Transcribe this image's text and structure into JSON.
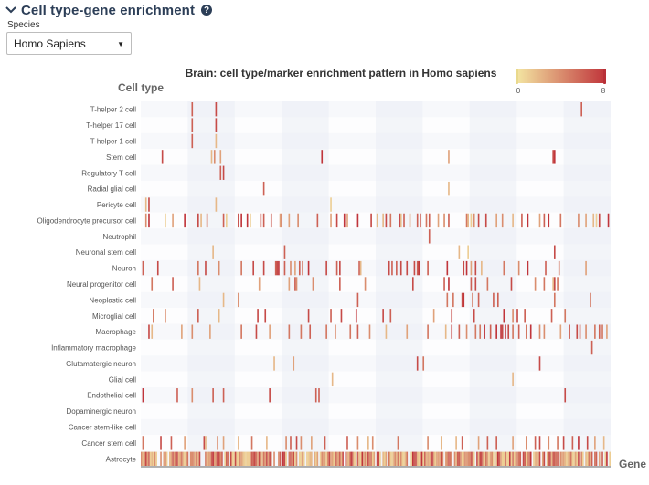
{
  "header": {
    "title": "Cell type-gene enrichment",
    "help_icon": "question-circle-icon",
    "chevron_icon": "chevron-down-icon"
  },
  "species": {
    "label": "Species",
    "selected": "Homo Sapiens"
  },
  "chart_data": {
    "type": "heatmap",
    "title": "Brain: cell type/marker enrichment pattern in Homo sapiens",
    "ylabel": "Cell type",
    "xlabel": "Gene",
    "colorbar": {
      "min": 0,
      "max": 8,
      "min_label": "0",
      "max_label": "8",
      "low_color": "#f3e4a1",
      "high_color": "#c0353b"
    },
    "n_genes": 315,
    "rows": [
      {
        "name": "T-helper 2 cell",
        "cells": [
          [
            34,
            6
          ],
          [
            50,
            7
          ],
          [
            295,
            6
          ]
        ]
      },
      {
        "name": "T-helper 17 cell",
        "cells": [
          [
            34,
            6
          ],
          [
            50,
            7
          ]
        ]
      },
      {
        "name": "T-helper 1 cell",
        "cells": [
          [
            34,
            6
          ],
          [
            50,
            2
          ]
        ]
      },
      {
        "name": "Stem cell",
        "cells": [
          [
            14,
            7
          ],
          [
            47,
            2
          ],
          [
            49,
            4
          ],
          [
            53,
            3
          ],
          [
            121,
            8
          ],
          [
            206,
            3
          ],
          [
            276,
            7
          ],
          [
            277,
            8
          ]
        ]
      },
      {
        "name": "Regulatory T cell",
        "cells": [
          [
            53,
            6
          ],
          [
            55,
            7
          ]
        ]
      },
      {
        "name": "Radial glial cell",
        "cells": [
          [
            82,
            6
          ],
          [
            206,
            2
          ]
        ]
      },
      {
        "name": "Pericyte cell",
        "cells": [
          [
            3,
            2
          ],
          [
            5,
            7
          ],
          [
            50,
            2
          ],
          [
            127,
            1
          ]
        ]
      },
      {
        "name": "Oligodendrocyte precursor cell",
        "cells": [
          [
            3,
            4
          ],
          [
            5,
            8
          ],
          [
            16,
            1
          ],
          [
            21,
            3
          ],
          [
            29,
            8
          ],
          [
            38,
            7
          ],
          [
            40,
            2
          ],
          [
            44,
            5
          ],
          [
            55,
            6
          ],
          [
            57,
            1
          ],
          [
            65,
            7
          ],
          [
            67,
            8
          ],
          [
            71,
            8
          ],
          [
            73,
            1
          ],
          [
            80,
            6
          ],
          [
            82,
            6
          ],
          [
            87,
            6
          ],
          [
            93,
            3
          ],
          [
            94,
            5
          ],
          [
            99,
            3
          ],
          [
            105,
            4
          ],
          [
            118,
            6
          ],
          [
            127,
            3
          ],
          [
            131,
            7
          ],
          [
            136,
            8
          ],
          [
            138,
            3
          ],
          [
            145,
            8
          ],
          [
            154,
            7
          ],
          [
            158,
            2
          ],
          [
            162,
            2
          ],
          [
            164,
            7
          ],
          [
            167,
            5
          ],
          [
            173,
            8
          ],
          [
            174,
            2
          ],
          [
            176,
            6
          ],
          [
            180,
            3
          ],
          [
            185,
            6
          ],
          [
            187,
            6
          ],
          [
            191,
            5
          ],
          [
            193,
            6
          ],
          [
            199,
            3
          ],
          [
            203,
            4
          ],
          [
            206,
            6
          ],
          [
            218,
            5
          ],
          [
            219,
            2
          ],
          [
            221,
            1
          ],
          [
            223,
            4
          ],
          [
            226,
            7
          ],
          [
            231,
            7
          ],
          [
            238,
            3
          ],
          [
            242,
            4
          ],
          [
            249,
            2
          ],
          [
            255,
            6
          ],
          [
            259,
            8
          ],
          [
            267,
            3
          ],
          [
            270,
            6
          ],
          [
            273,
            8
          ],
          [
            281,
            5
          ],
          [
            293,
            4
          ],
          [
            298,
            3
          ],
          [
            303,
            2
          ],
          [
            305,
            1
          ],
          [
            307,
            7
          ],
          [
            313,
            8
          ]
        ]
      },
      {
        "name": "Neutrophil",
        "cells": [
          [
            193,
            6
          ]
        ]
      },
      {
        "name": "Neuronal stem cell",
        "cells": [
          [
            48,
            2
          ],
          [
            96,
            6
          ],
          [
            213,
            2
          ],
          [
            219,
            1
          ],
          [
            277,
            7
          ]
        ]
      },
      {
        "name": "Neuron",
        "cells": [
          [
            1,
            6
          ],
          [
            11,
            7
          ],
          [
            38,
            5
          ],
          [
            43,
            7
          ],
          [
            52,
            4
          ],
          [
            67,
            5
          ],
          [
            75,
            7
          ],
          [
            82,
            7
          ],
          [
            90,
            6
          ],
          [
            91,
            7
          ],
          [
            92,
            8
          ],
          [
            96,
            6
          ],
          [
            100,
            4
          ],
          [
            103,
            3
          ],
          [
            106,
            6
          ],
          [
            108,
            5
          ],
          [
            112,
            8
          ],
          [
            124,
            7
          ],
          [
            131,
            6
          ],
          [
            133,
            7
          ],
          [
            146,
            6
          ],
          [
            147,
            2
          ],
          [
            166,
            7
          ],
          [
            168,
            6
          ],
          [
            171,
            6
          ],
          [
            174,
            7
          ],
          [
            178,
            7
          ],
          [
            183,
            7
          ],
          [
            185,
            6
          ],
          [
            186,
            8
          ],
          [
            192,
            6
          ],
          [
            205,
            8
          ],
          [
            216,
            7
          ],
          [
            218,
            8
          ],
          [
            221,
            3
          ],
          [
            224,
            7
          ],
          [
            228,
            2
          ],
          [
            243,
            5
          ],
          [
            253,
            4
          ],
          [
            259,
            8
          ],
          [
            271,
            6
          ],
          [
            280,
            5
          ],
          [
            298,
            3
          ]
        ]
      },
      {
        "name": "Neural progenitor cell",
        "cells": [
          [
            7,
            5
          ],
          [
            21,
            6
          ],
          [
            39,
            2
          ],
          [
            79,
            3
          ],
          [
            99,
            3
          ],
          [
            103,
            6
          ],
          [
            104,
            4
          ],
          [
            115,
            4
          ],
          [
            133,
            6
          ],
          [
            150,
            4
          ],
          [
            182,
            7
          ],
          [
            203,
            6
          ],
          [
            206,
            8
          ],
          [
            221,
            6
          ],
          [
            224,
            7
          ],
          [
            232,
            5
          ],
          [
            248,
            7
          ],
          [
            264,
            4
          ],
          [
            270,
            5
          ],
          [
            276,
            2
          ],
          [
            277,
            7
          ],
          [
            279,
            5
          ]
        ]
      },
      {
        "name": "Neoplastic cell",
        "cells": [
          [
            55,
            2
          ],
          [
            65,
            4
          ],
          [
            145,
            6
          ],
          [
            205,
            5
          ],
          [
            209,
            5
          ],
          [
            215,
            7
          ],
          [
            216,
            8
          ],
          [
            222,
            5
          ],
          [
            226,
            6
          ],
          [
            236,
            6
          ],
          [
            239,
            6
          ],
          [
            277,
            5
          ],
          [
            301,
            5
          ]
        ]
      },
      {
        "name": "Microglial cell",
        "cells": [
          [
            8,
            5
          ],
          [
            16,
            4
          ],
          [
            38,
            6
          ],
          [
            52,
            2
          ],
          [
            78,
            7
          ],
          [
            83,
            7
          ],
          [
            112,
            7
          ],
          [
            127,
            6
          ],
          [
            134,
            7
          ],
          [
            144,
            8
          ],
          [
            162,
            7
          ],
          [
            167,
            6
          ],
          [
            196,
            3
          ],
          [
            208,
            7
          ],
          [
            223,
            7
          ],
          [
            243,
            8
          ],
          [
            249,
            4
          ],
          [
            252,
            7
          ],
          [
            257,
            6
          ],
          [
            275,
            6
          ],
          [
            284,
            5
          ]
        ]
      },
      {
        "name": "Macrophage",
        "cells": [
          [
            5,
            7
          ],
          [
            7,
            2
          ],
          [
            27,
            3
          ],
          [
            34,
            4
          ],
          [
            46,
            3
          ],
          [
            67,
            5
          ],
          [
            77,
            7
          ],
          [
            86,
            3
          ],
          [
            99,
            5
          ],
          [
            107,
            5
          ],
          [
            113,
            6
          ],
          [
            124,
            5
          ],
          [
            130,
            4
          ],
          [
            140,
            5
          ],
          [
            145,
            6
          ],
          [
            153,
            4
          ],
          [
            164,
            2
          ],
          [
            178,
            3
          ],
          [
            192,
            5
          ],
          [
            204,
            2
          ],
          [
            208,
            7
          ],
          [
            213,
            6
          ],
          [
            218,
            4
          ],
          [
            224,
            5
          ],
          [
            227,
            5
          ],
          [
            230,
            8
          ],
          [
            234,
            6
          ],
          [
            238,
            8
          ],
          [
            241,
            8
          ],
          [
            242,
            7
          ],
          [
            244,
            8
          ],
          [
            246,
            7
          ],
          [
            249,
            5
          ],
          [
            253,
            6
          ],
          [
            258,
            5
          ],
          [
            261,
            8
          ],
          [
            267,
            4
          ],
          [
            270,
            4
          ],
          [
            281,
            3
          ],
          [
            287,
            6
          ],
          [
            292,
            7
          ],
          [
            294,
            6
          ],
          [
            298,
            4
          ],
          [
            304,
            5
          ],
          [
            307,
            6
          ],
          [
            309,
            5
          ],
          [
            312,
            3
          ]
        ]
      },
      {
        "name": "Inflammatory macrophage",
        "cells": [
          [
            302,
            6
          ]
        ]
      },
      {
        "name": "Glutamatergic neuron",
        "cells": [
          [
            89,
            2
          ],
          [
            102,
            3
          ],
          [
            185,
            7
          ],
          [
            189,
            5
          ],
          [
            267,
            7
          ]
        ]
      },
      {
        "name": "Glial cell",
        "cells": [
          [
            128,
            2
          ],
          [
            249,
            2
          ]
        ]
      },
      {
        "name": "Endothelial cell",
        "cells": [
          [
            1,
            8
          ],
          [
            24,
            6
          ],
          [
            34,
            4
          ],
          [
            48,
            6
          ],
          [
            55,
            6
          ],
          [
            86,
            7
          ],
          [
            117,
            6
          ],
          [
            119,
            6
          ],
          [
            284,
            7
          ]
        ]
      },
      {
        "name": "Dopaminergic neuron",
        "cells": []
      },
      {
        "name": "Cancer stem-like cell",
        "cells": []
      },
      {
        "name": "Cancer stem cell",
        "cells": [
          [
            1,
            5
          ],
          [
            13,
            7
          ],
          [
            20,
            6
          ],
          [
            29,
            3
          ],
          [
            42,
            7
          ],
          [
            43,
            2
          ],
          [
            51,
            4
          ],
          [
            55,
            3
          ],
          [
            65,
            2
          ],
          [
            74,
            5
          ],
          [
            84,
            2
          ],
          [
            97,
            4
          ],
          [
            100,
            6
          ],
          [
            104,
            7
          ],
          [
            107,
            4
          ],
          [
            114,
            3
          ],
          [
            123,
            6
          ],
          [
            138,
            6
          ],
          [
            145,
            4
          ],
          [
            152,
            2
          ],
          [
            155,
            4
          ],
          [
            172,
            5
          ],
          [
            192,
            4
          ],
          [
            201,
            2
          ],
          [
            211,
            2
          ],
          [
            215,
            6
          ],
          [
            226,
            3
          ],
          [
            232,
            6
          ],
          [
            238,
            6
          ],
          [
            249,
            3
          ],
          [
            258,
            4
          ],
          [
            264,
            6
          ],
          [
            267,
            7
          ],
          [
            273,
            4
          ],
          [
            279,
            5
          ],
          [
            283,
            7
          ],
          [
            289,
            6
          ],
          [
            293,
            8
          ],
          [
            299,
            7
          ],
          [
            304,
            3
          ],
          [
            310,
            2
          ]
        ]
      },
      {
        "name": "Astrocyte",
        "cells": "dense"
      }
    ]
  }
}
